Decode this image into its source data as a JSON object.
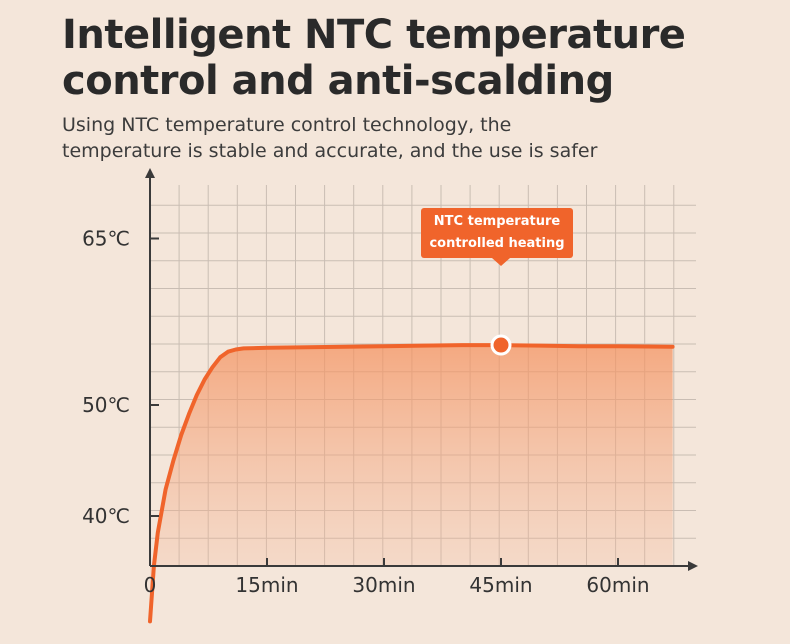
{
  "title_line1": "Intelligent NTC temperature",
  "title_line2": "control and anti-scalding",
  "subtitle_line1": "Using NTC temperature control technology, the",
  "subtitle_line2": "temperature is stable and accurate, and the use is safer",
  "colors": {
    "background": "#f4e6da",
    "curve": "#f0642b",
    "grid": "#c9bdb3",
    "axis": "#3a3a3a"
  },
  "chart_data": {
    "type": "area",
    "x_unit": "min",
    "y_unit": "°C",
    "x_ticks": [
      {
        "value": 0,
        "label": "0"
      },
      {
        "value": 15,
        "label": "15min"
      },
      {
        "value": 30,
        "label": "30min"
      },
      {
        "value": 45,
        "label": "45min"
      },
      {
        "value": 60,
        "label": "60min"
      }
    ],
    "y_ticks": [
      {
        "value": 40,
        "label": "40℃"
      },
      {
        "value": 50,
        "label": "50℃"
      },
      {
        "value": 65,
        "label": "65℃"
      }
    ],
    "series": [
      {
        "x": [
          0,
          0.5,
          1,
          2,
          3,
          4,
          5,
          6,
          7,
          8,
          9,
          10,
          11,
          12,
          15,
          20,
          25,
          30,
          35,
          40,
          45,
          50,
          55,
          60,
          67
        ],
        "y": [
          30.5,
          35.5,
          38.5,
          42.4,
          45.0,
          47.3,
          49.2,
          50.9,
          52.3,
          53.4,
          54.3,
          54.8,
          55.0,
          55.1,
          55.15,
          55.2,
          55.25,
          55.3,
          55.35,
          55.4,
          55.4,
          55.35,
          55.3,
          55.3,
          55.25
        ]
      }
    ],
    "annotation": {
      "x": 45,
      "y": 55.4,
      "text_line1": "NTC temperature",
      "text_line2": "controlled heating"
    },
    "grid": true
  }
}
